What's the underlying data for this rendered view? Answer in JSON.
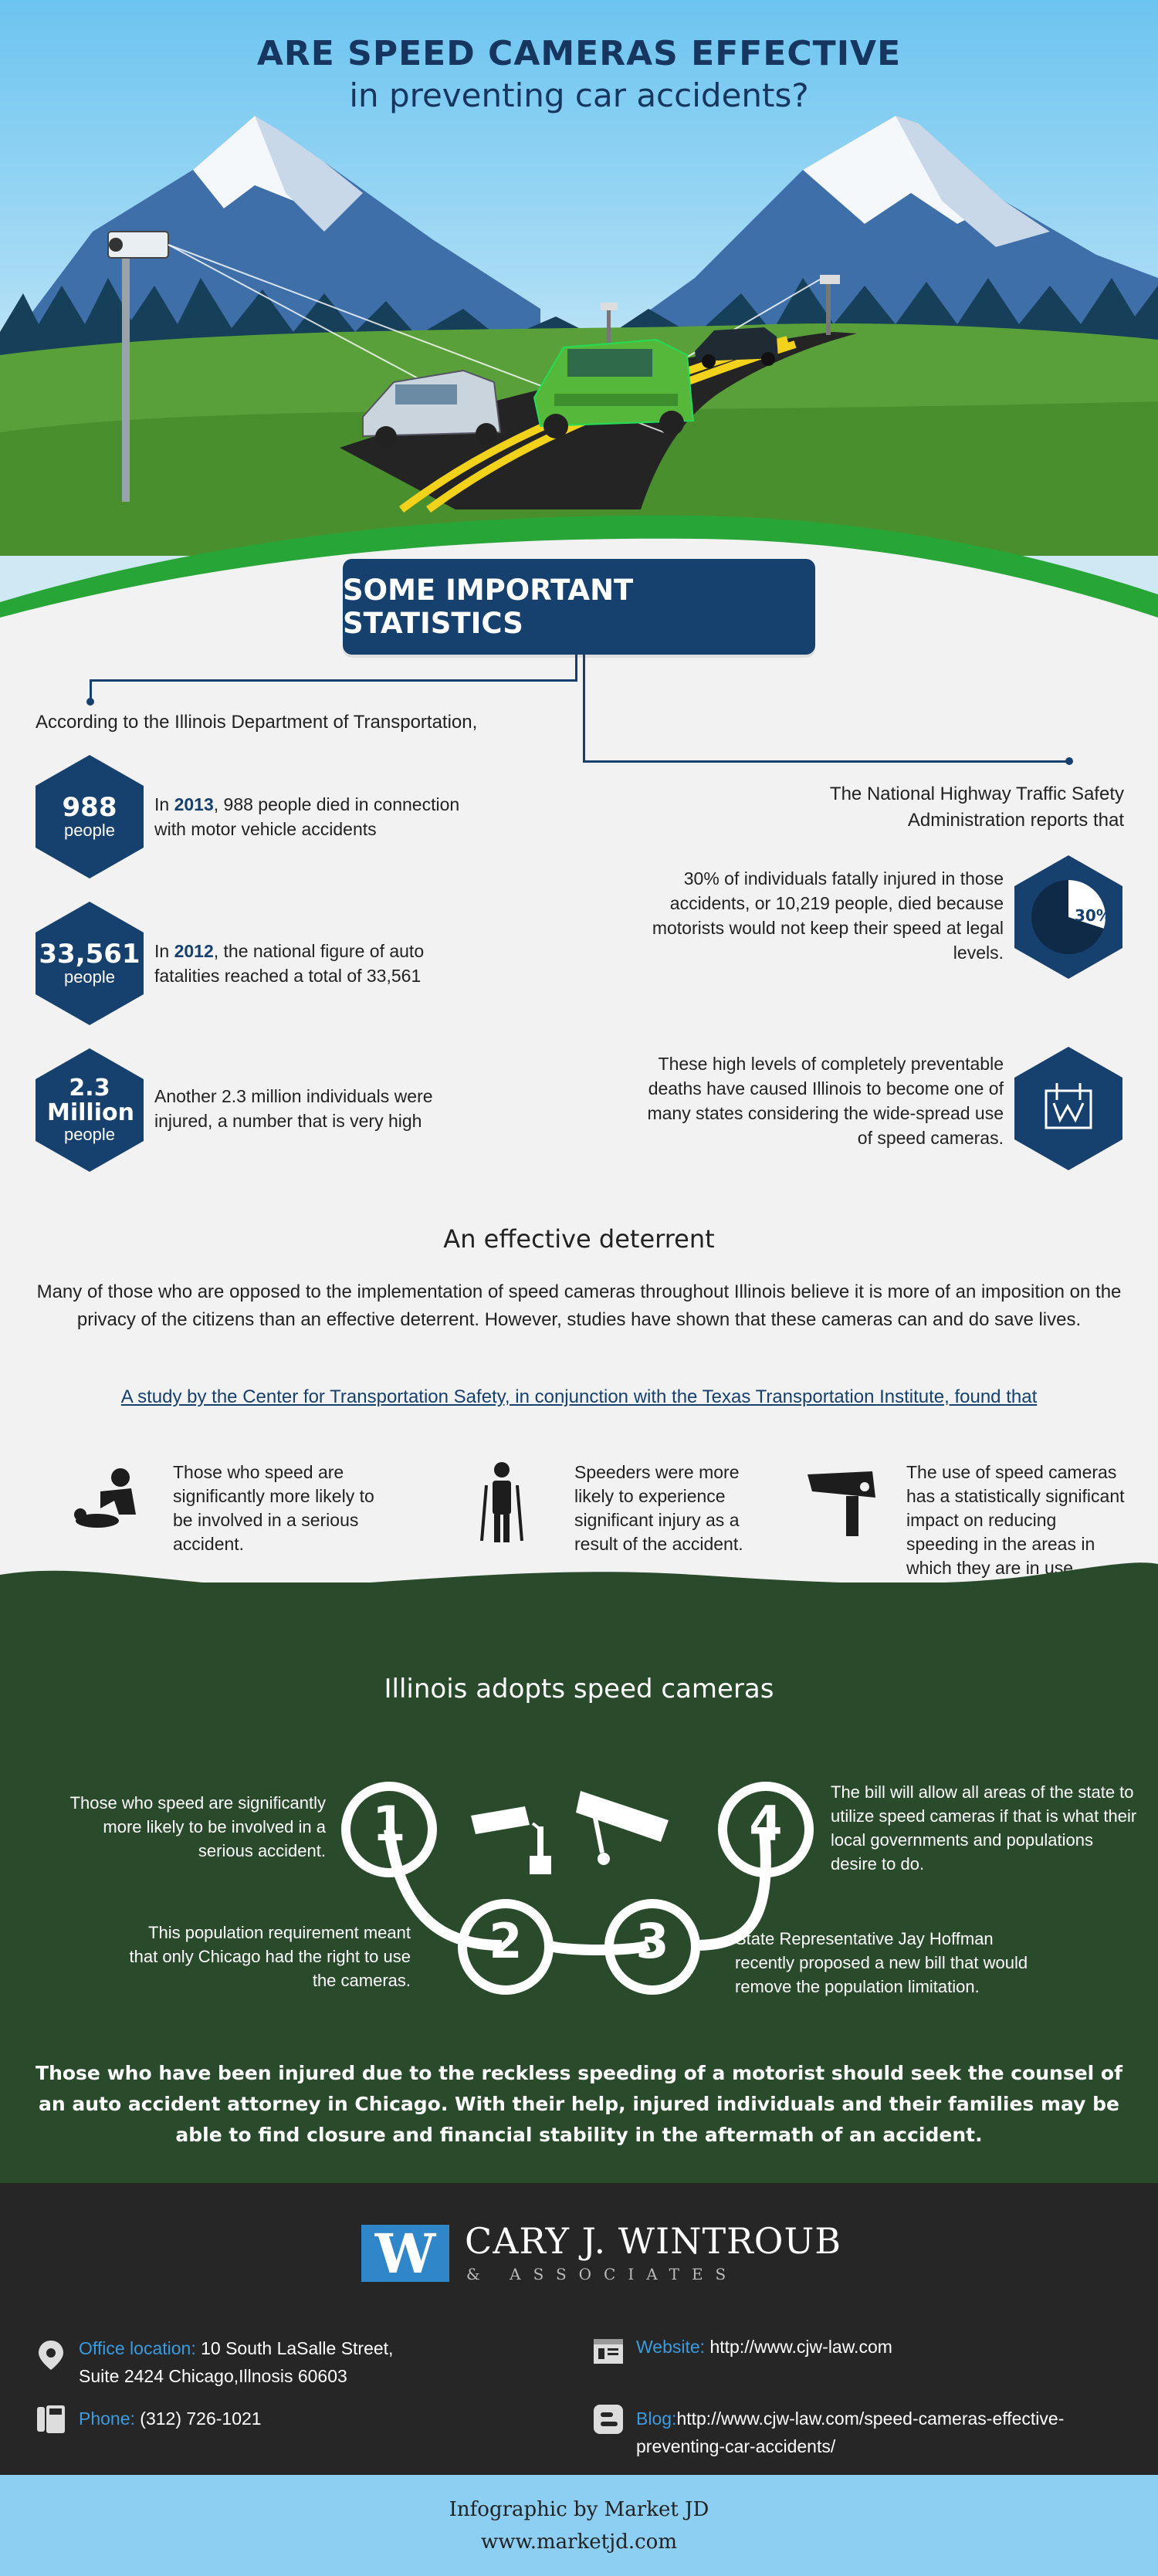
{
  "hero": {
    "title_line1": "ARE SPEED CAMERAS EFFECTIVE",
    "title_line2": "in preventing car accidents?"
  },
  "stats": {
    "banner": "SOME IMPORTANT STATISTICS",
    "intro_left": "According to the Illinois Department of Transportation,",
    "intro_right": "The National Highway Traffic Safety Administration reports that",
    "left_items": [
      {
        "number": "988",
        "unit": "people",
        "year": "2013",
        "pre": "In ",
        "text": ", 988 people died in connection with motor vehicle accidents"
      },
      {
        "number": "33,561",
        "unit": "people",
        "year": "2012",
        "pre": "In ",
        "text": ", the national figure of auto fatalities reached a total of 33,561"
      },
      {
        "number": "2.3 Million",
        "unit": "people",
        "year": "",
        "pre": "",
        "text": "Another 2.3 million individuals were injured, a number that is very high"
      }
    ],
    "right_items": [
      {
        "text": "30% of individuals fatally injured in those accidents, or 10,219 people, died because motorists would not keep their speed at legal levels.",
        "badge": "30%",
        "percent": 30
      },
      {
        "text": "These high levels of completely preventable deaths have caused Illinois to become one of many states considering the wide-spread use of speed cameras.",
        "icon": "legislation-icon"
      }
    ]
  },
  "deterrent": {
    "heading": "An effective deterrent",
    "body": "Many of those who are opposed to the implementation of speed cameras throughout Illinois believe it is more of an imposition on the privacy of the citizens than an effective deterrent. However, studies have shown that these cameras can and do save lives.",
    "study": "A study  by the Center for Transportation Safety, in conjunction with the Texas Transportation Institute, found that",
    "findings": [
      {
        "icon": "accident-victim-icon",
        "text": "Those who speed are significantly more likely to be involved in a serious accident."
      },
      {
        "icon": "injured-person-icon",
        "text": "Speeders were more likely to experience significant injury as a result of the accident."
      },
      {
        "icon": "speed-camera-icon",
        "text": "The use of speed cameras has a statistically significant impact on reducing speeding in the areas in which they are in use."
      }
    ]
  },
  "illinois": {
    "heading": "Illinois adopts speed cameras",
    "steps": [
      {
        "num": "1",
        "text": "Those who speed are significantly more likely to be involved in a serious accident."
      },
      {
        "num": "2",
        "text": "This population requirement meant that only Chicago had the right to use the cameras."
      },
      {
        "num": "3",
        "text": "State Representative Jay Hoffman recently proposed a new bill that would remove the population limitation."
      },
      {
        "num": "4",
        "text": "The bill will allow all areas of the state to utilize speed cameras if that is what their local governments and populations desire to do."
      }
    ],
    "closing": "Those who have been injured due to the reckless speeding of a motorist should seek the counsel of an auto accident attorney in Chicago. With their help, injured individuals and their families may be able to find closure and financial stability in the aftermath of an accident."
  },
  "footer": {
    "logo_letter": "W",
    "firm_name": "CARY J. WINTROUB",
    "firm_sub": "& ASSOCIATES",
    "office_label": "Office location:",
    "office_value": " 10 South LaSalle Street,",
    "office_value2": "Suite 2424 Chicago,Illnosis 60603",
    "phone_label": "Phone:",
    "phone_value": " (312) 726-1021",
    "website_label": "Website:",
    "website_value": " http://www.cjw-law.com",
    "blog_label": "Blog:",
    "blog_value": "http://www.cjw-law.com/speed-cameras-effective-",
    "blog_value2": "preventing-car-accidents/",
    "credit_line1": "Infographic by Market JD",
    "credit_line2": "www.marketjd.com"
  },
  "colors": {
    "navy": "#16406d",
    "green_dark": "#2a4a2c",
    "sky": "#6cc4f0",
    "link_blue": "#3a9be0"
  }
}
